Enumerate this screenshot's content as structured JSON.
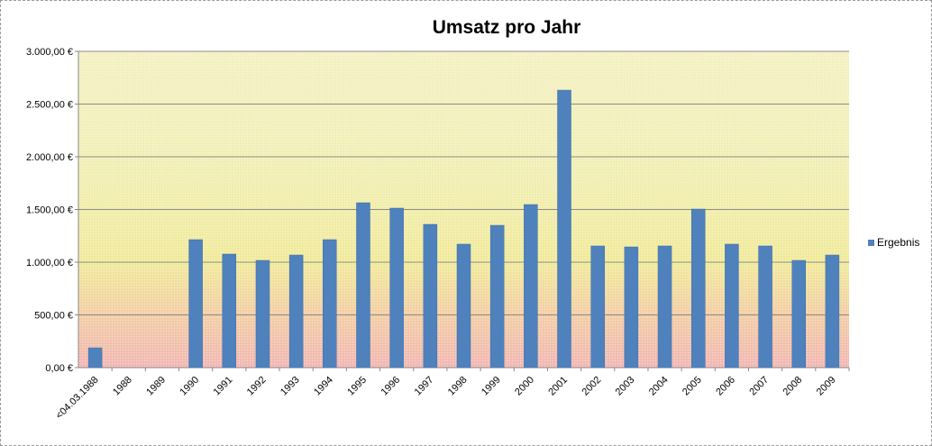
{
  "chart_data": {
    "type": "bar",
    "title": "Umsatz pro Jahr",
    "xlabel": "",
    "ylabel": "",
    "ylim": [
      0,
      3000
    ],
    "yticks": [
      "0,00 €",
      "500,00 €",
      "1.000,00 €",
      "1.500,00 €",
      "2.000,00 €",
      "2.500,00 €",
      "3.000,00 €"
    ],
    "grid": true,
    "legend_position": "right",
    "categories": [
      "<04.03.1988",
      "1988",
      "1989",
      "1990",
      "1991",
      "1992",
      "1993",
      "1994",
      "1995",
      "1996",
      "1997",
      "1998",
      "1999",
      "2000",
      "2001",
      "2002",
      "2003",
      "2004",
      "2005",
      "2006",
      "2007",
      "2008",
      "2009"
    ],
    "series": [
      {
        "name": "Ergebnis",
        "color": "#4f81bd",
        "values": [
          188,
          0,
          0,
          1214,
          1077,
          1017,
          1068,
          1214,
          1564,
          1513,
          1359,
          1171,
          1350,
          1547,
          2632,
          1154,
          1145,
          1154,
          1504,
          1171,
          1154,
          1017,
          1068
        ]
      }
    ]
  }
}
